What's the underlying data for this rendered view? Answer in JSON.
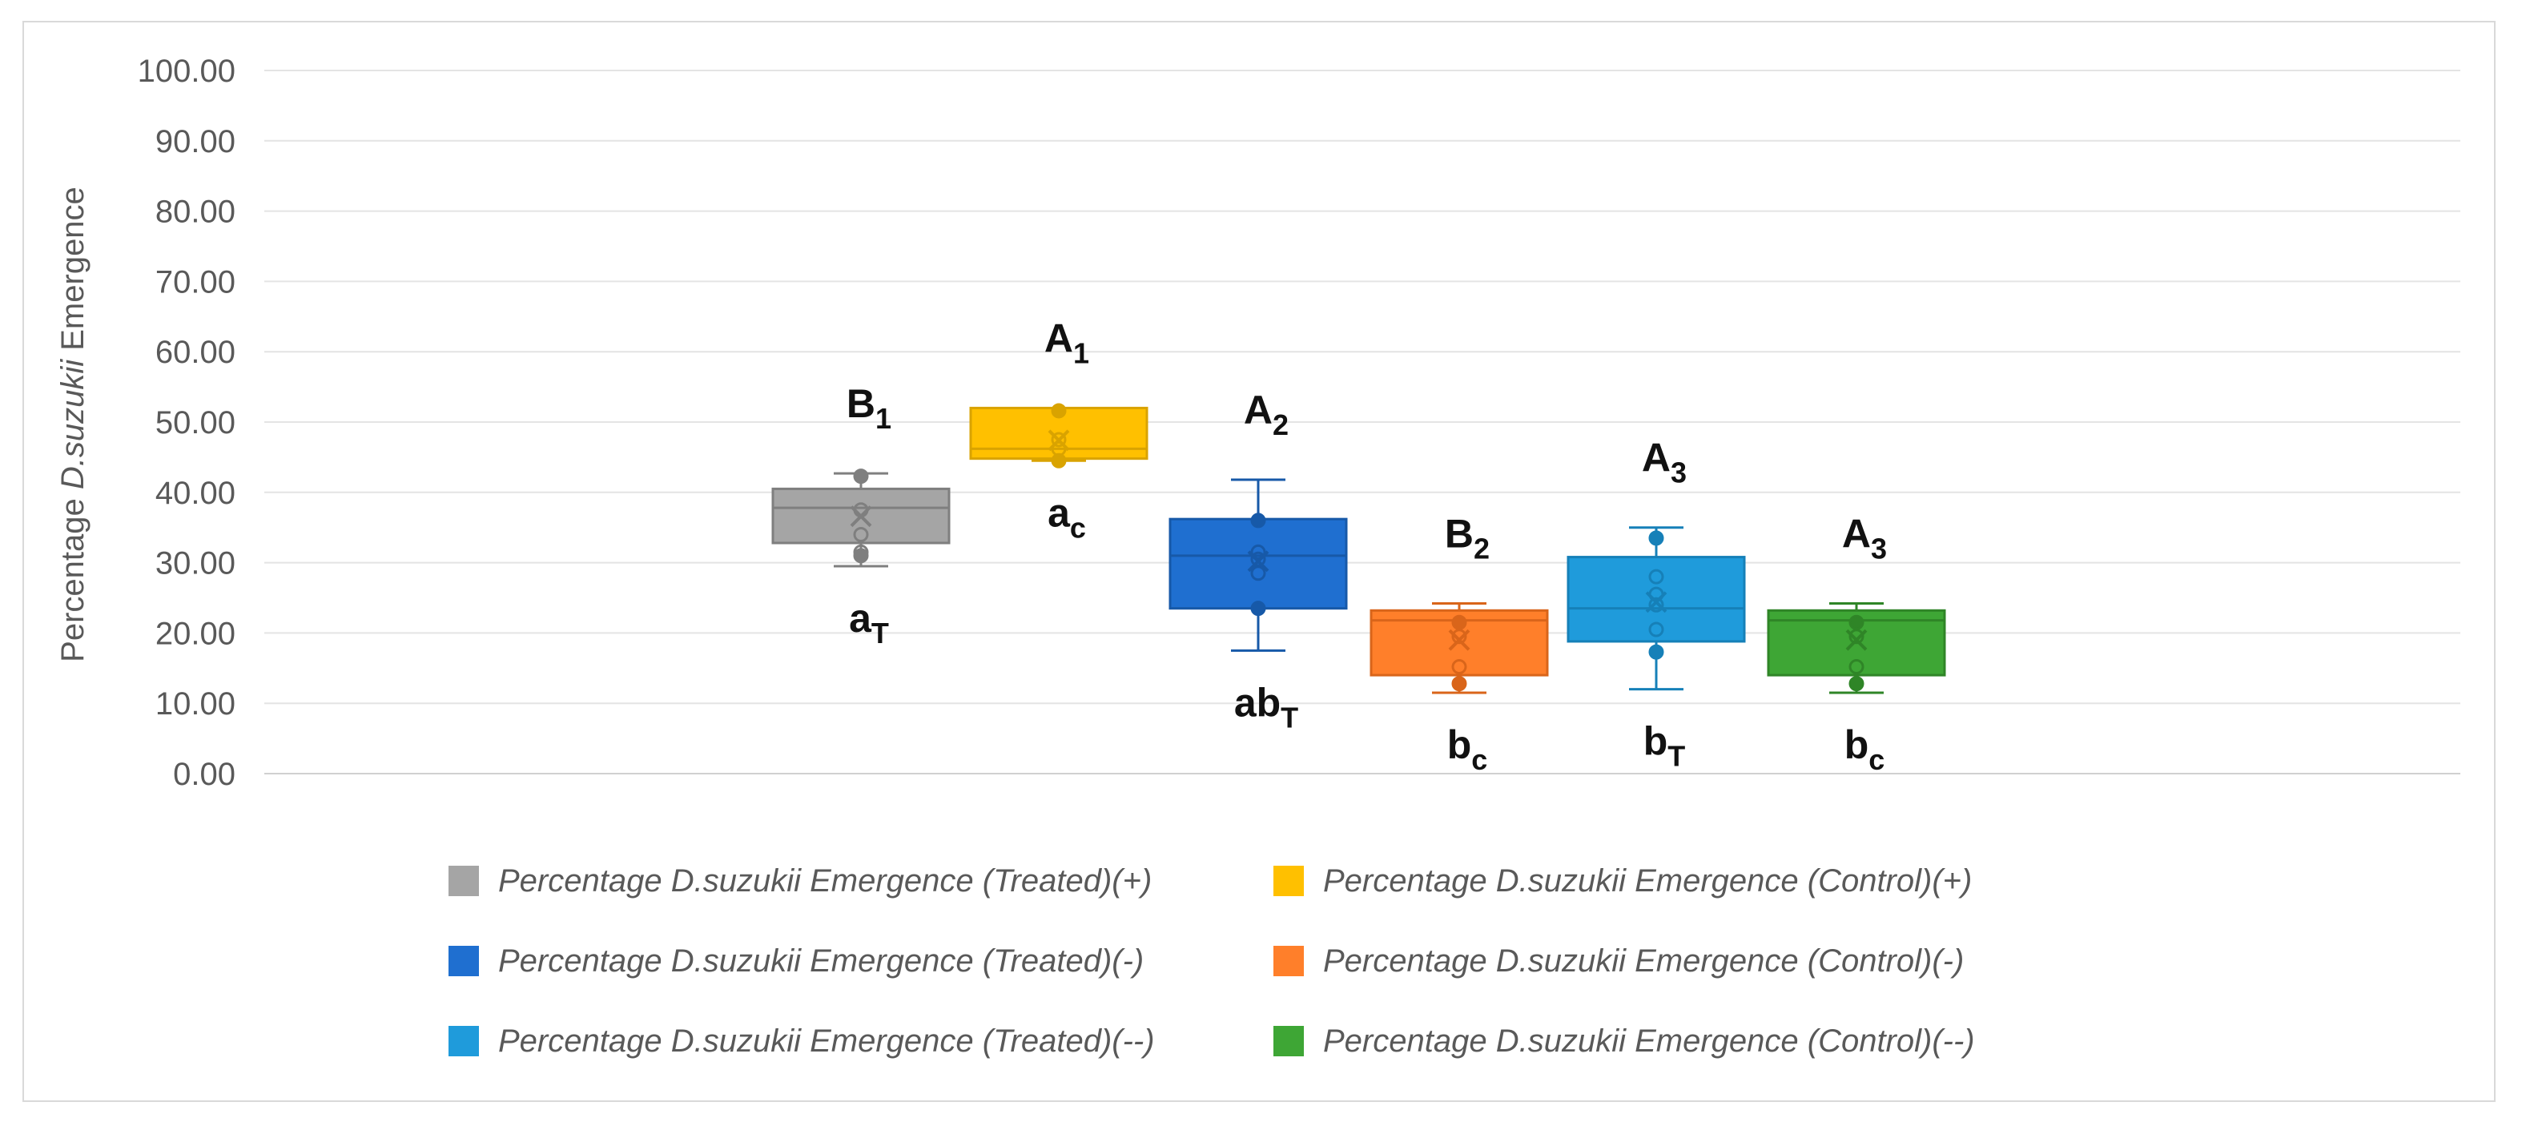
{
  "chart_data": {
    "type": "boxplot",
    "title": "",
    "ylabel": {
      "prefix": "Percentage ",
      "italic": "D.suzukii",
      "suffix": " Emergence"
    },
    "ylim": [
      0,
      100
    ],
    "yticks": [
      "0.00",
      "10.00",
      "20.00",
      "30.00",
      "40.00",
      "50.00",
      "60.00",
      "70.00",
      "80.00",
      "90.00",
      "100.00"
    ],
    "ytick_values": [
      0,
      10,
      20,
      30,
      40,
      50,
      60,
      70,
      80,
      90,
      100
    ],
    "grid": true,
    "legend_position": "bottom",
    "series": [
      {
        "name": "Percentage D.suzukii Emergence (Treated)(+)",
        "color": "#a5a5a5",
        "edge": "#7f7f7f",
        "min": 29.5,
        "q1": 32.8,
        "median": 37.8,
        "q3": 40.5,
        "max": 42.7,
        "mean": 36.6,
        "points": [
          31.0,
          31.5,
          34.0,
          37.5,
          42.3
        ],
        "upper_label": {
          "main": "B",
          "sub": "1"
        },
        "lower_label": {
          "main": "a",
          "sub": "T"
        }
      },
      {
        "name": "Percentage D.suzukii  Emergence (Control)(+)",
        "color": "#ffc000",
        "edge": "#d9a300",
        "min": 44.5,
        "q1": 44.8,
        "median": 46.2,
        "q3": 52.0,
        "max": 52.0,
        "mean": 47.4,
        "points": [
          44.5,
          46.2,
          47.5,
          51.6
        ],
        "upper_label": {
          "main": "A",
          "sub": "1"
        },
        "lower_label": {
          "main": "a",
          "sub": "c"
        }
      },
      {
        "name": "Percentage D.suzukii  Emergence (Treated)(-)",
        "color": "#1f6fd0",
        "edge": "#1759a8",
        "min": 17.5,
        "q1": 23.5,
        "median": 31.0,
        "q3": 36.2,
        "max": 41.8,
        "mean": 30.2,
        "points": [
          23.5,
          28.5,
          30.5,
          31.5,
          36.0
        ],
        "upper_label": {
          "main": "A",
          "sub": "2"
        },
        "lower_label": {
          "main": "ab",
          "sub": "T"
        }
      },
      {
        "name": "Percentage D.suzukii  Emergence (Control)(-)",
        "color": "#ff7f2a",
        "edge": "#d9651a",
        "min": 11.5,
        "q1": 14.0,
        "median": 21.8,
        "q3": 23.2,
        "max": 24.2,
        "mean": 19.0,
        "points": [
          12.8,
          15.2,
          19.5,
          21.5
        ],
        "upper_label": {
          "main": "B",
          "sub": "2"
        },
        "lower_label": {
          "main": "b",
          "sub": "c"
        }
      },
      {
        "name": "Percentage D.suzukii  Emergence (Treated)(--)",
        "color": "#1f9bdb",
        "edge": "#1680b8",
        "min": 12.0,
        "q1": 18.8,
        "median": 23.5,
        "q3": 30.8,
        "max": 35.0,
        "mean": 24.4,
        "points": [
          17.3,
          20.5,
          24.0,
          25.5,
          28.0,
          33.5
        ],
        "upper_label": {
          "main": "A",
          "sub": "3"
        },
        "lower_label": {
          "main": "b",
          "sub": "T"
        }
      },
      {
        "name": "Percentage D.suzukii  Emergence (Control)(--)",
        "color": "#3ea635",
        "edge": "#2f8527",
        "min": 11.5,
        "q1": 14.0,
        "median": 21.8,
        "q3": 23.2,
        "max": 24.2,
        "mean": 19.0,
        "points": [
          12.8,
          15.2,
          19.5,
          21.5
        ],
        "upper_label": {
          "main": "A",
          "sub": "3"
        },
        "lower_label": {
          "main": "b",
          "sub": "c"
        }
      }
    ]
  },
  "legend": [
    {
      "label": "Percentage D.suzukii Emergence (Treated)(+)",
      "color": "#a5a5a5"
    },
    {
      "label": "Percentage D.suzukii  Emergence (Control)(+)",
      "color": "#ffc000"
    },
    {
      "label": "Percentage D.suzukii  Emergence (Treated)(-)",
      "color": "#1f6fd0"
    },
    {
      "label": "Percentage D.suzukii  Emergence (Control)(-)",
      "color": "#ff7f2a"
    },
    {
      "label": "Percentage D.suzukii  Emergence (Treated)(--)",
      "color": "#1f9bdb"
    },
    {
      "label": "Percentage D.suzukii  Emergence (Control)(--)",
      "color": "#3ea635"
    }
  ]
}
